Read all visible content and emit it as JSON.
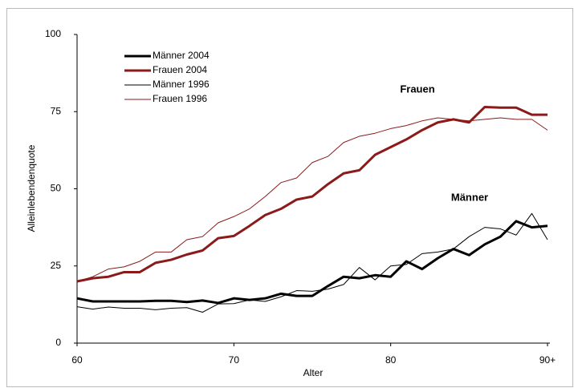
{
  "chart_data": {
    "type": "line",
    "y_label": "Alleinlebendenquote",
    "x_label": "Alter",
    "x": [
      60,
      61,
      62,
      63,
      64,
      65,
      66,
      67,
      68,
      69,
      70,
      71,
      72,
      73,
      74,
      75,
      76,
      77,
      78,
      79,
      80,
      81,
      82,
      83,
      84,
      85,
      86,
      87,
      88,
      89,
      90
    ],
    "series": [
      {
        "name": "Männer 2004",
        "color": "#000000",
        "width": 3,
        "values": [
          14.5,
          13.5,
          13.5,
          13.5,
          13.5,
          13.7,
          13.7,
          13.3,
          13.8,
          13,
          14.5,
          14,
          14.5,
          16,
          15.3,
          15.3,
          18.5,
          21.5,
          21,
          22,
          21.5,
          26.5,
          24,
          27.5,
          30.5,
          28.5,
          32,
          34.5,
          39.5,
          37.5,
          38
        ]
      },
      {
        "name": "Frauen 2004",
        "color": "#8b1a1a",
        "width": 3,
        "values": [
          20,
          21,
          21.5,
          23,
          23,
          26,
          27,
          28.7,
          30,
          34,
          34.7,
          38,
          41.5,
          43.5,
          46.5,
          47.5,
          51.5,
          55,
          56,
          61,
          63.5,
          66,
          69,
          71.5,
          72.5,
          71.5,
          76.5,
          76.3,
          76.3,
          74,
          74
        ]
      },
      {
        "name": "Männer 1996",
        "color": "#000000",
        "width": 1,
        "values": [
          11.8,
          11,
          11.7,
          11.3,
          11.3,
          10.8,
          11.3,
          11.5,
          10,
          12.7,
          12.8,
          14,
          13.5,
          15,
          17,
          16.8,
          17.5,
          19,
          24.5,
          20.5,
          25,
          25.5,
          29,
          29.5,
          30.5,
          34.5,
          37.5,
          37,
          35,
          42,
          33.5
        ]
      },
      {
        "name": "Frauen 1996",
        "color": "#8b1a1a",
        "width": 1,
        "values": [
          20,
          21.5,
          24,
          24.7,
          26.5,
          29.5,
          29.5,
          33.5,
          34.5,
          39,
          41,
          43.5,
          47.5,
          52,
          53.5,
          58.5,
          60.5,
          65,
          67,
          68,
          69.5,
          70.5,
          72,
          73,
          72.5,
          72,
          72.5,
          73,
          72.5,
          72.5,
          69
        ]
      }
    ],
    "annotations": [
      "Frauen",
      "Männer"
    ],
    "xlim": [
      60,
      90
    ],
    "xticks": [
      60,
      70,
      80,
      {
        "value": 90,
        "label": "90+"
      }
    ],
    "ylim": [
      0,
      100
    ],
    "yticks": [
      0,
      25,
      50,
      75,
      100
    ]
  }
}
